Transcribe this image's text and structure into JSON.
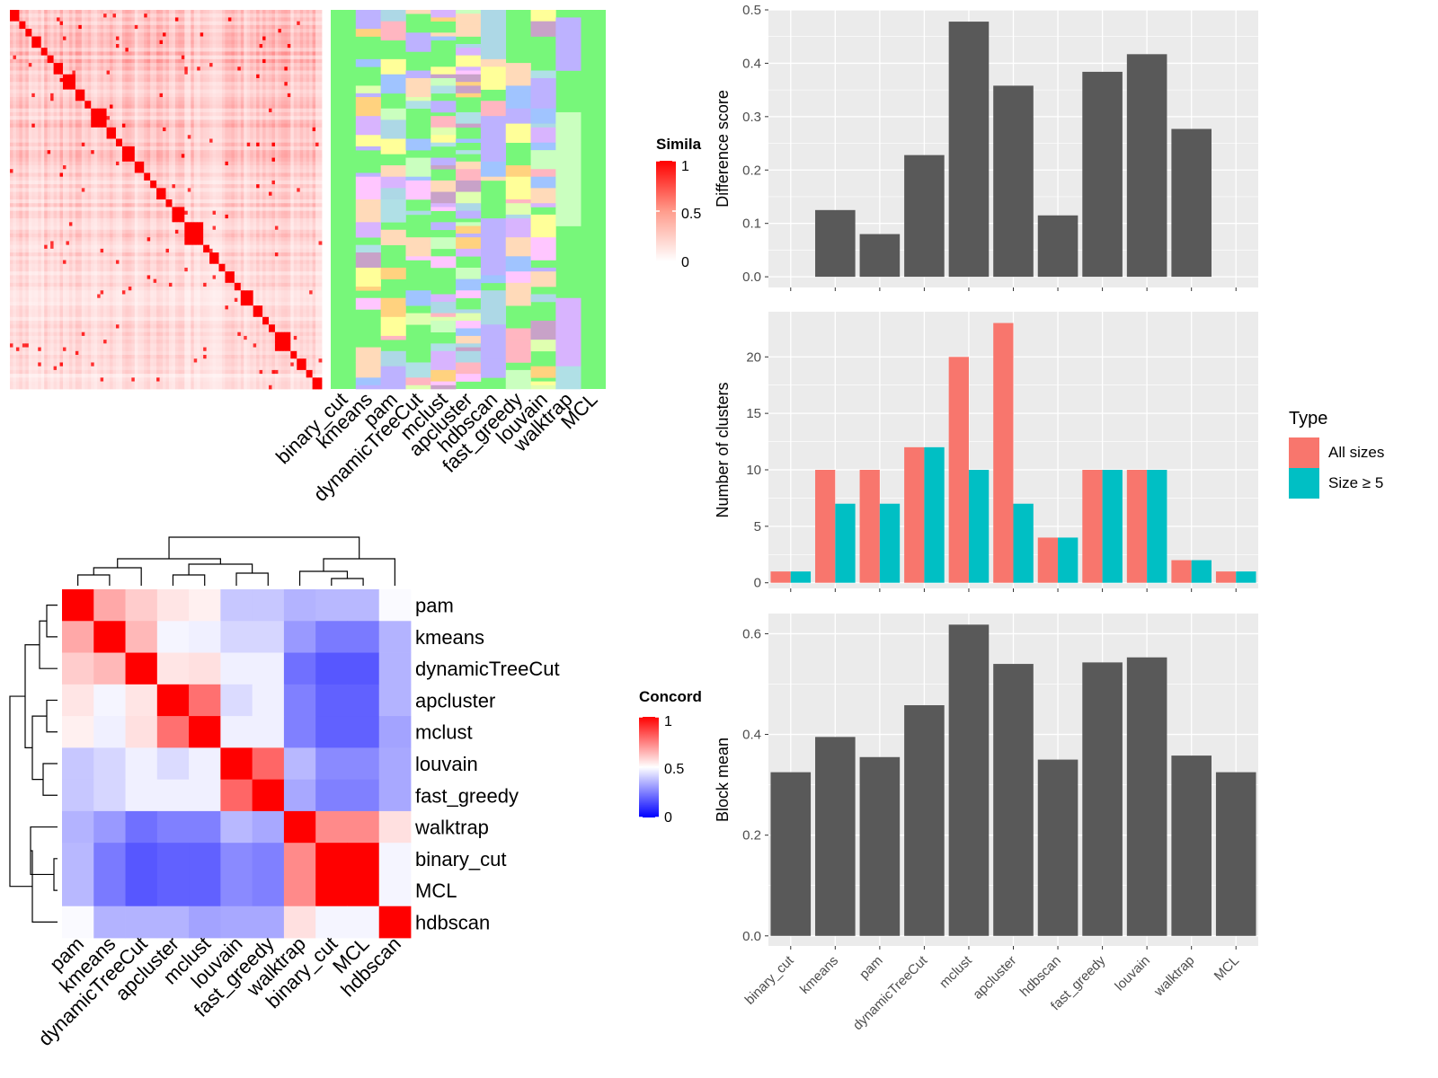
{
  "methods_bar": [
    "binary_cut",
    "kmeans",
    "pam",
    "dynamicTreeCut",
    "mclust",
    "apcluster",
    "hdbscan",
    "fast_greedy",
    "louvain",
    "walktrap",
    "MCL"
  ],
  "methods_hm": [
    "pam",
    "kmeans",
    "dynamicTreeCut",
    "apcluster",
    "mclust",
    "louvain",
    "fast_greedy",
    "walktrap",
    "binary_cut",
    "MCL",
    "hdbscan"
  ],
  "similarity_legend": {
    "title": "Simila",
    "ticks": [
      "1",
      "0.5",
      "0"
    ]
  },
  "concordance_legend": {
    "title": "Concord",
    "ticks": [
      "1",
      "0.5",
      "0"
    ]
  },
  "type_legend": {
    "title": "Type",
    "items": [
      "All sizes",
      "Size ≥ 5"
    ]
  },
  "colors": {
    "all_sizes": "#F8766D",
    "size5": "#00BFC4",
    "bar": "#595959",
    "panel_bg": "#EBEBEB",
    "grid": "#ffffff",
    "high": "#FF0000",
    "mid": "#FFFFFF",
    "low": "#0000FF",
    "cluster_bg": "#77F77A"
  },
  "concordance_matrix": [
    [
      1.0,
      0.67,
      0.6,
      0.55,
      0.53,
      0.39,
      0.39,
      0.35,
      0.36,
      0.36,
      0.49
    ],
    [
      0.67,
      1.0,
      0.64,
      0.48,
      0.47,
      0.42,
      0.42,
      0.3,
      0.24,
      0.24,
      0.35
    ],
    [
      0.6,
      0.64,
      1.0,
      0.55,
      0.56,
      0.47,
      0.47,
      0.22,
      0.17,
      0.17,
      0.35
    ],
    [
      0.55,
      0.48,
      0.55,
      1.0,
      0.78,
      0.43,
      0.47,
      0.25,
      0.19,
      0.19,
      0.35
    ],
    [
      0.53,
      0.47,
      0.56,
      0.78,
      1.0,
      0.47,
      0.47,
      0.25,
      0.19,
      0.19,
      0.32
    ],
    [
      0.39,
      0.42,
      0.47,
      0.43,
      0.47,
      1.0,
      0.8,
      0.36,
      0.27,
      0.27,
      0.33
    ],
    [
      0.39,
      0.42,
      0.47,
      0.47,
      0.47,
      0.8,
      1.0,
      0.33,
      0.25,
      0.25,
      0.33
    ],
    [
      0.35,
      0.3,
      0.22,
      0.25,
      0.25,
      0.36,
      0.33,
      1.0,
      0.73,
      0.73,
      0.56
    ],
    [
      0.36,
      0.24,
      0.17,
      0.19,
      0.19,
      0.27,
      0.25,
      0.73,
      1.0,
      1.0,
      0.48
    ],
    [
      0.36,
      0.24,
      0.17,
      0.19,
      0.19,
      0.27,
      0.25,
      0.73,
      1.0,
      1.0,
      0.48
    ],
    [
      0.49,
      0.35,
      0.35,
      0.35,
      0.32,
      0.33,
      0.33,
      0.56,
      0.48,
      0.48,
      1.0
    ]
  ],
  "chart_data": [
    {
      "type": "heatmap",
      "title": "",
      "legend_title": "Simila",
      "n_terms": 100,
      "block_sizes": [
        3,
        2,
        2,
        3,
        2,
        2,
        3,
        4,
        3,
        2,
        5,
        3,
        2,
        4,
        3,
        2,
        2,
        3,
        2,
        4,
        6,
        2,
        3,
        2,
        3,
        2,
        4,
        3,
        2,
        2,
        5,
        2,
        3,
        2,
        3,
        2,
        3,
        4
      ],
      "within_block_similarity": 1,
      "background_similarity": 0.25
    },
    {
      "type": "heatmap",
      "title": "",
      "columns": [
        "binary_cut",
        "kmeans",
        "pam",
        "dynamicTreeCut",
        "mclust",
        "apcluster",
        "hdbscan",
        "fast_greedy",
        "louvain",
        "walktrap",
        "MCL"
      ],
      "n_terms": 100,
      "cluster_counts": [
        1,
        10,
        10,
        12,
        20,
        23,
        4,
        10,
        10,
        2,
        1
      ]
    },
    {
      "type": "bar",
      "categories": [
        "binary_cut",
        "kmeans",
        "pam",
        "dynamicTreeCut",
        "mclust",
        "apcluster",
        "hdbscan",
        "fast_greedy",
        "louvain",
        "walktrap",
        "MCL"
      ],
      "values": [
        0,
        0.125,
        0.08,
        0.228,
        0.478,
        0.358,
        0.115,
        0.384,
        0.417,
        0.277,
        0
      ],
      "ylabel": "Difference score",
      "ylim": [
        -0.02,
        0.5
      ],
      "yticks": [
        0,
        0.1,
        0.2,
        0.3,
        0.4,
        0.5
      ],
      "ytick_labels": [
        "0.0",
        "0.1",
        "0.2",
        "0.3",
        "0.4",
        "0.5"
      ]
    },
    {
      "type": "bar",
      "categories": [
        "binary_cut",
        "kmeans",
        "pam",
        "dynamicTreeCut",
        "mclust",
        "apcluster",
        "hdbscan",
        "fast_greedy",
        "louvain",
        "walktrap",
        "MCL"
      ],
      "series": [
        {
          "name": "All sizes",
          "values": [
            1,
            10,
            10,
            12,
            20,
            23,
            4,
            10,
            10,
            2,
            1
          ]
        },
        {
          "name": "Size ≥ 5",
          "values": [
            1,
            7,
            7,
            12,
            10,
            7,
            4,
            10,
            10,
            2,
            1
          ]
        }
      ],
      "ylabel": "Number of clusters",
      "legend_title": "Type",
      "ylim": [
        -0.5,
        24
      ],
      "yticks": [
        0,
        5,
        10,
        15,
        20
      ],
      "ytick_labels": [
        "0",
        "5",
        "10",
        "15",
        "20"
      ]
    },
    {
      "type": "bar",
      "categories": [
        "binary_cut",
        "kmeans",
        "pam",
        "dynamicTreeCut",
        "mclust",
        "apcluster",
        "hdbscan",
        "fast_greedy",
        "louvain",
        "walktrap",
        "MCL"
      ],
      "values": [
        0.325,
        0.395,
        0.355,
        0.458,
        0.618,
        0.54,
        0.35,
        0.543,
        0.553,
        0.358,
        0.325
      ],
      "ylabel": "Block mean",
      "ylim": [
        -0.02,
        0.64
      ],
      "yticks": [
        0,
        0.2,
        0.4,
        0.6
      ],
      "ytick_labels": [
        "0.0",
        "0.2",
        "0.4",
        "0.6"
      ]
    },
    {
      "type": "heatmap",
      "title": "",
      "rows": [
        "pam",
        "kmeans",
        "dynamicTreeCut",
        "apcluster",
        "mclust",
        "louvain",
        "fast_greedy",
        "walktrap",
        "binary_cut",
        "MCL",
        "hdbscan"
      ],
      "columns": [
        "pam",
        "kmeans",
        "dynamicTreeCut",
        "apcluster",
        "mclust",
        "louvain",
        "fast_greedy",
        "walktrap",
        "binary_cut",
        "MCL",
        "hdbscan"
      ],
      "legend_title": "Concord",
      "range": [
        0,
        1
      ]
    }
  ]
}
